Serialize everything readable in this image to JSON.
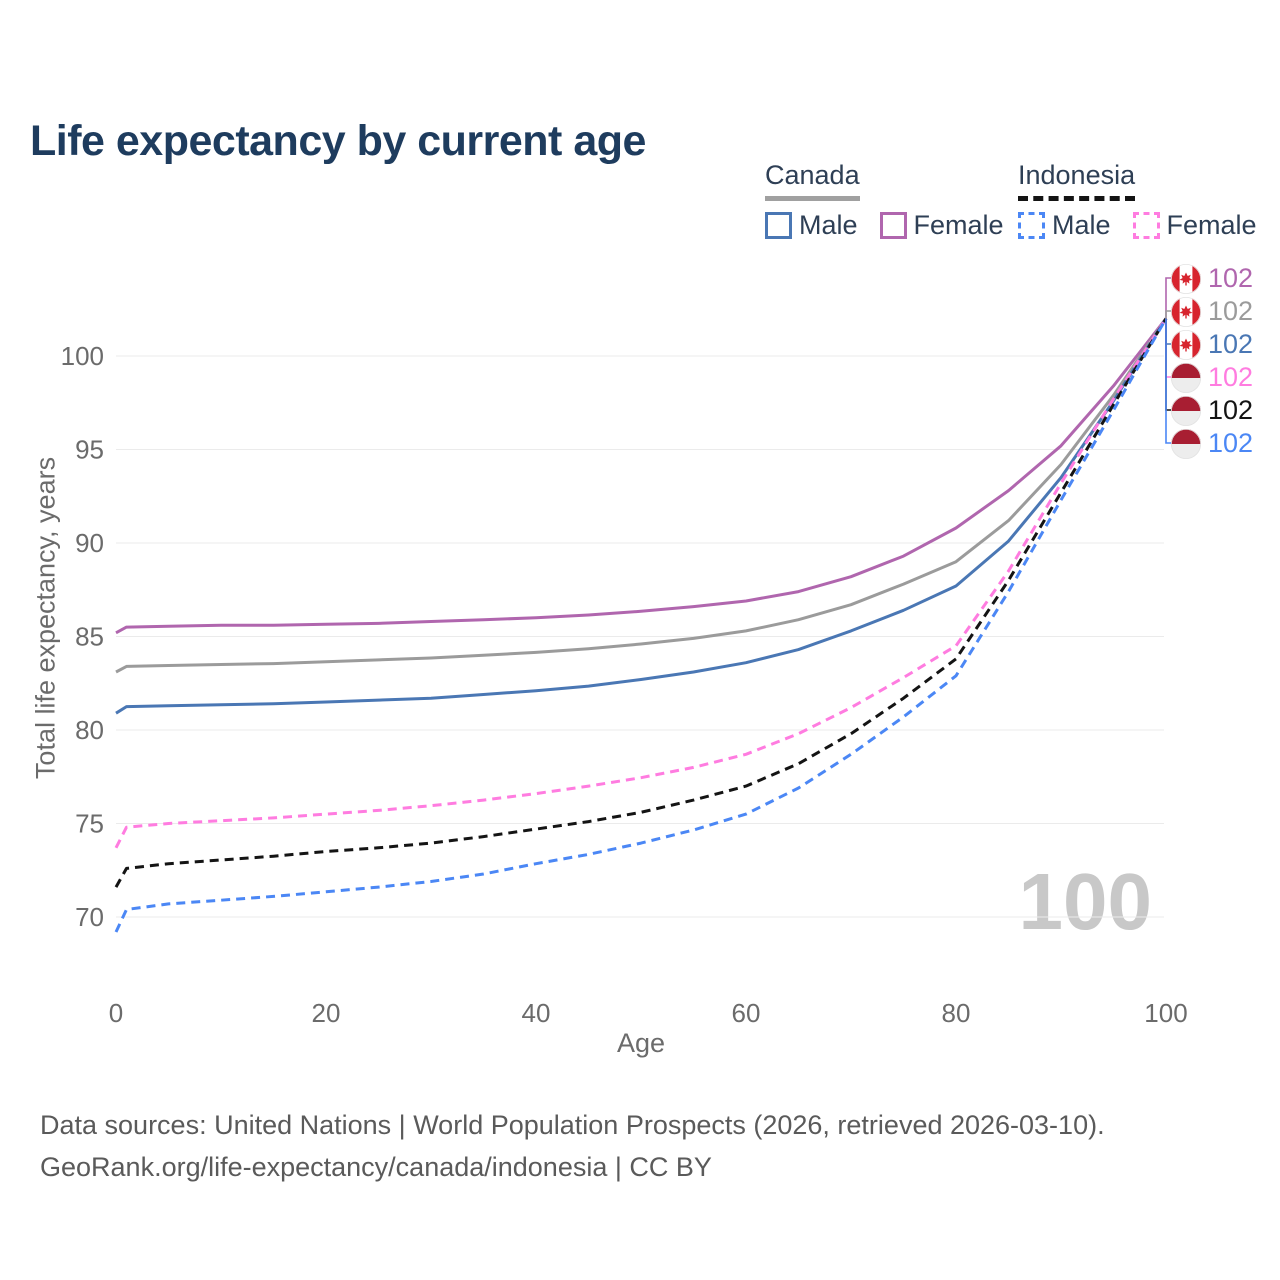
{
  "title": "Life expectancy by current age",
  "legend": {
    "groups": [
      {
        "name": "Canada",
        "line_style": "solid",
        "underline_color": "#a0a0a0",
        "items": [
          {
            "label": "Male",
            "color": "#4a77b4"
          },
          {
            "label": "Female",
            "color": "#b066ae"
          }
        ]
      },
      {
        "name": "Indonesia",
        "line_style": "dashed",
        "underline_color": "#141414",
        "items": [
          {
            "label": "Male",
            "color": "#4b87f5"
          },
          {
            "label": "Female",
            "color": "#ff7ce0"
          }
        ]
      }
    ]
  },
  "axes": {
    "x_label": "Age",
    "y_label": "Total life expectancy, years",
    "x_ticks": [
      0,
      20,
      40,
      60,
      80,
      100
    ],
    "y_ticks": [
      70,
      75,
      80,
      85,
      90,
      95,
      100
    ]
  },
  "watermark": "100",
  "end_labels": [
    {
      "flag": "canada",
      "value": "102",
      "color": "#b066ae"
    },
    {
      "flag": "canada",
      "value": "102",
      "color": "#9b9b9b"
    },
    {
      "flag": "canada",
      "value": "102",
      "color": "#4a77b4"
    },
    {
      "flag": "indonesia",
      "value": "102",
      "color": "#ff7ce0"
    },
    {
      "flag": "indonesia",
      "value": "102",
      "color": "#141414"
    },
    {
      "flag": "indonesia",
      "value": "102",
      "color": "#4b87f5"
    }
  ],
  "footer": {
    "line1": "Data sources: United Nations | World Population Prospects (2026, retrieved 2026-03-10).",
    "line2": "GeoRank.org/life-expectancy/canada/indonesia | CC BY"
  },
  "chart_data": {
    "type": "line",
    "title": "Life expectancy by current age",
    "xlabel": "Age",
    "ylabel": "Total life expectancy, years",
    "xlim": [
      0,
      100
    ],
    "ylim": [
      68,
      103
    ],
    "x_ticks": [
      0,
      20,
      40,
      60,
      80,
      100
    ],
    "y_ticks": [
      70,
      75,
      80,
      85,
      90,
      95,
      100
    ],
    "grid": "horizontal-only",
    "legend_position": "top-right",
    "end_value_all_series": 102,
    "ages": [
      0,
      1,
      5,
      10,
      15,
      20,
      25,
      30,
      35,
      40,
      45,
      50,
      55,
      60,
      65,
      70,
      75,
      80,
      85,
      90,
      95,
      100
    ],
    "series": [
      {
        "name": "Canada Female",
        "country": "Canada",
        "sex": "Female",
        "style": "solid",
        "color": "#b066ae",
        "end_label": "102",
        "values": [
          85.2,
          85.5,
          85.55,
          85.6,
          85.6,
          85.65,
          85.7,
          85.8,
          85.9,
          86.0,
          86.15,
          86.35,
          86.6,
          86.9,
          87.4,
          88.2,
          89.3,
          90.8,
          92.8,
          95.2,
          98.4,
          102
        ]
      },
      {
        "name": "Canada Both sexes",
        "country": "Canada",
        "sex": "Both",
        "style": "solid",
        "color": "#9b9b9b",
        "end_label": "102",
        "values": [
          83.1,
          83.4,
          83.45,
          83.5,
          83.55,
          83.65,
          83.75,
          83.85,
          84.0,
          84.15,
          84.35,
          84.6,
          84.9,
          85.3,
          85.9,
          86.7,
          87.8,
          89.0,
          91.2,
          94.2,
          97.9,
          102
        ]
      },
      {
        "name": "Canada Male",
        "country": "Canada",
        "sex": "Male",
        "style": "solid",
        "color": "#4a77b4",
        "end_label": "102",
        "values": [
          80.9,
          81.25,
          81.3,
          81.35,
          81.4,
          81.5,
          81.6,
          81.7,
          81.9,
          82.1,
          82.35,
          82.7,
          83.1,
          83.6,
          84.3,
          85.3,
          86.4,
          87.7,
          90.1,
          93.5,
          97.6,
          102
        ]
      },
      {
        "name": "Indonesia Female",
        "country": "Indonesia",
        "sex": "Female",
        "style": "dashed",
        "color": "#ff7ce0",
        "end_label": "102",
        "values": [
          73.7,
          74.8,
          75.0,
          75.15,
          75.3,
          75.5,
          75.7,
          75.95,
          76.25,
          76.6,
          77.0,
          77.45,
          78.0,
          78.7,
          79.8,
          81.2,
          82.8,
          84.5,
          88.5,
          93.2,
          97.7,
          102
        ]
      },
      {
        "name": "Indonesia Both sexes",
        "country": "Indonesia",
        "sex": "Both",
        "style": "dashed",
        "color": "#141414",
        "end_label": "102",
        "values": [
          71.6,
          72.6,
          72.85,
          73.05,
          73.25,
          73.5,
          73.7,
          73.95,
          74.3,
          74.7,
          75.1,
          75.6,
          76.25,
          77.0,
          78.2,
          79.8,
          81.7,
          83.8,
          88.0,
          92.7,
          97.4,
          102
        ]
      },
      {
        "name": "Indonesia Male",
        "country": "Indonesia",
        "sex": "Male",
        "style": "dashed",
        "color": "#4b87f5",
        "end_label": "102",
        "values": [
          69.2,
          70.4,
          70.7,
          70.9,
          71.1,
          71.35,
          71.6,
          71.9,
          72.3,
          72.85,
          73.35,
          73.95,
          74.65,
          75.5,
          76.9,
          78.7,
          80.7,
          82.9,
          87.4,
          92.3,
          97.1,
          102
        ]
      }
    ]
  }
}
